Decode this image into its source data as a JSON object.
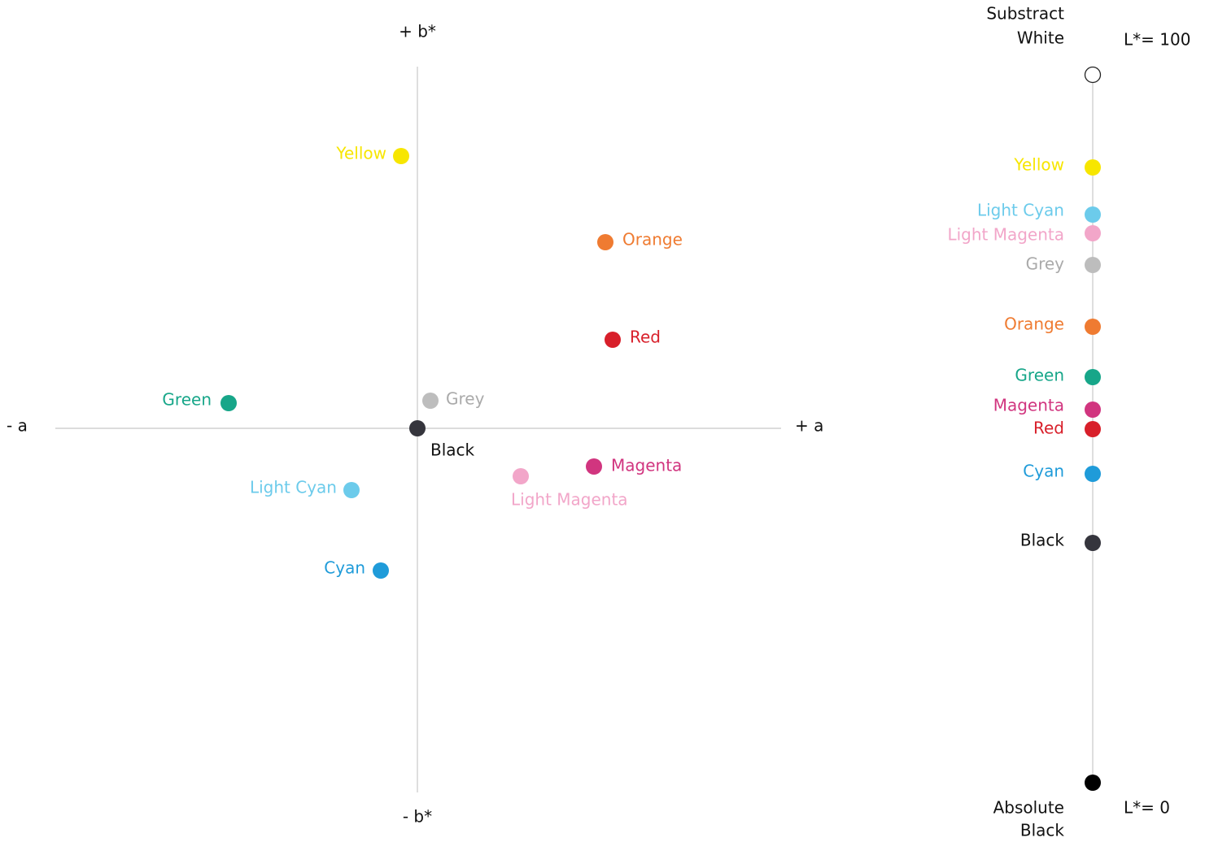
{
  "axes": {
    "b_plus": "+ b*",
    "b_minus": "- b*",
    "a_minus": "- a",
    "a_plus": "+ a"
  },
  "plane_points": [
    {
      "label": "Yellow",
      "color": "#f7e600"
    },
    {
      "label": "Orange",
      "color": "#ef7b31"
    },
    {
      "label": "Red",
      "color": "#d81f2a"
    },
    {
      "label": "Green",
      "color": "#17a689"
    },
    {
      "label": "Grey",
      "color": "#bdbdbd"
    },
    {
      "label": "Black",
      "color": "#35353d"
    },
    {
      "label": "Light Cyan",
      "color": "#6ccbeb"
    },
    {
      "label": "Magenta",
      "color": "#d1357f"
    },
    {
      "label": "Light Magenta",
      "color": "#f2a6c9"
    },
    {
      "label": "Cyan",
      "color": "#1f9bd9"
    }
  ],
  "lightness_scale": {
    "top_label": [
      "Substract",
      "White"
    ],
    "top_value": "L*= 100",
    "bottom_label": [
      "Absolute",
      "Black"
    ],
    "bottom_value": "L*= 0",
    "points": [
      {
        "label": "Yellow",
        "color": "#f7e600"
      },
      {
        "label": "Light Cyan",
        "color": "#6ccbeb"
      },
      {
        "label": "Light Magenta",
        "color": "#f2a6c9"
      },
      {
        "label": "Grey",
        "color": "#bdbdbd"
      },
      {
        "label": "Orange",
        "color": "#ef7b31"
      },
      {
        "label": "Green",
        "color": "#17a689"
      },
      {
        "label": "Magenta",
        "color": "#d1357f"
      },
      {
        "label": "Red",
        "color": "#d81f2a"
      },
      {
        "label": "Cyan",
        "color": "#1f9bd9"
      },
      {
        "label": "Black",
        "color": "#35353d"
      }
    ]
  }
}
